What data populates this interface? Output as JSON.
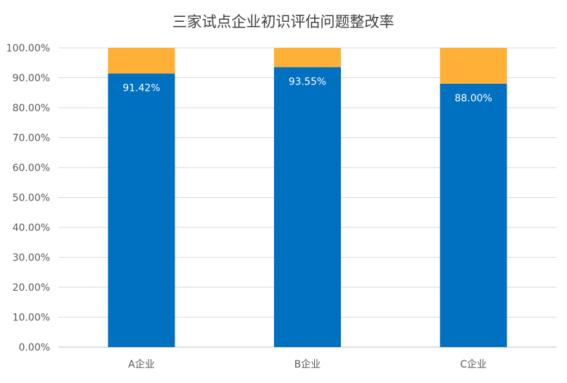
{
  "chart_data": {
    "type": "bar",
    "stacked": true,
    "title": "三家试点企业初识评估问题整改率",
    "categories": [
      "A企业",
      "B企业",
      "C企业"
    ],
    "series": [
      {
        "values": [
          91.42,
          93.55,
          88.0
        ],
        "labels": [
          "91.42%",
          "93.55%",
          "88.00%"
        ],
        "color": "#0070C0"
      },
      {
        "values": [
          8.58,
          6.45,
          12.0
        ],
        "color": "#FFB037"
      }
    ],
    "ylim": [
      0,
      100
    ],
    "yticks": [
      "0.00%",
      "10.00%",
      "20.00%",
      "30.00%",
      "40.00%",
      "50.00%",
      "60.00%",
      "70.00%",
      "80.00%",
      "90.00%",
      "100.00%"
    ],
    "grid": true,
    "legend": "none",
    "xlabel": "",
    "ylabel": ""
  }
}
